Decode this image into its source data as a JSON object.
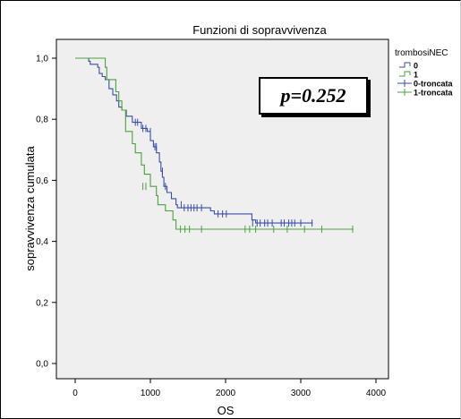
{
  "chart_data": {
    "type": "line",
    "title": "Funzioni di sopravvivenza",
    "xlabel": "OS",
    "ylabel": "sopravvivenza cumulata",
    "xlim": [
      -200,
      4200
    ],
    "ylim": [
      -0.05,
      1.05
    ],
    "x_ticks": [
      "0",
      "1000",
      "2000",
      "3000",
      "4000"
    ],
    "x_tick_values": [
      0,
      1000,
      2000,
      3000,
      4000
    ],
    "y_ticks": [
      "0,0",
      "0,2",
      "0,4",
      "0,6",
      "0,8",
      "1,0"
    ],
    "y_tick_values": [
      0,
      0.2,
      0.4,
      0.6,
      0.8,
      1.0
    ],
    "legend_title": "trombosiNEC",
    "legend_entries": [
      "0",
      "1",
      "0-troncata",
      "1-troncata"
    ],
    "legend_position": "right",
    "annotation": "p=0.252",
    "grid": false,
    "colors": {
      "group0": "#3a4ea6",
      "group1": "#49a33d",
      "plot_bg": "#efefef"
    },
    "series": [
      {
        "name": "0",
        "steps": [
          [
            0,
            1.0
          ],
          [
            180,
            0.99
          ],
          [
            200,
            0.98
          ],
          [
            300,
            0.97
          ],
          [
            320,
            0.95
          ],
          [
            360,
            0.94
          ],
          [
            400,
            0.93
          ],
          [
            450,
            0.9
          ],
          [
            500,
            0.88
          ],
          [
            550,
            0.86
          ],
          [
            580,
            0.84
          ],
          [
            620,
            0.83
          ],
          [
            680,
            0.81
          ],
          [
            760,
            0.79
          ],
          [
            880,
            0.77
          ],
          [
            960,
            0.76
          ],
          [
            1000,
            0.73
          ],
          [
            1040,
            0.71
          ],
          [
            1080,
            0.69
          ],
          [
            1120,
            0.66
          ],
          [
            1140,
            0.63
          ],
          [
            1160,
            0.61
          ],
          [
            1180,
            0.58
          ],
          [
            1220,
            0.56
          ],
          [
            1280,
            0.54
          ],
          [
            1340,
            0.52
          ],
          [
            1360,
            0.51
          ],
          [
            1450,
            0.51
          ],
          [
            1800,
            0.5
          ],
          [
            1850,
            0.49
          ],
          [
            2350,
            0.47
          ],
          [
            2400,
            0.46
          ],
          [
            3160,
            0.46
          ]
        ],
        "censored": [
          [
            800,
            0.79
          ],
          [
            830,
            0.79
          ],
          [
            900,
            0.77
          ],
          [
            940,
            0.77
          ],
          [
            1000,
            0.76
          ],
          [
            1060,
            0.71
          ],
          [
            1080,
            0.71
          ],
          [
            1160,
            0.63
          ],
          [
            1200,
            0.58
          ],
          [
            1410,
            0.52
          ],
          [
            1450,
            0.51
          ],
          [
            1500,
            0.51
          ],
          [
            1540,
            0.51
          ],
          [
            1580,
            0.51
          ],
          [
            1620,
            0.51
          ],
          [
            1680,
            0.51
          ],
          [
            1900,
            0.49
          ],
          [
            1960,
            0.49
          ],
          [
            2010,
            0.49
          ],
          [
            2360,
            0.46
          ],
          [
            2420,
            0.46
          ],
          [
            2460,
            0.46
          ],
          [
            2520,
            0.46
          ],
          [
            2560,
            0.46
          ],
          [
            2620,
            0.46
          ],
          [
            2740,
            0.46
          ],
          [
            2780,
            0.46
          ],
          [
            2840,
            0.46
          ],
          [
            2880,
            0.46
          ],
          [
            2920,
            0.46
          ],
          [
            3000,
            0.46
          ],
          [
            3150,
            0.46
          ]
        ]
      },
      {
        "name": "1",
        "steps": [
          [
            0,
            1.0
          ],
          [
            400,
            0.97
          ],
          [
            420,
            0.93
          ],
          [
            500,
            0.93
          ],
          [
            540,
            0.89
          ],
          [
            580,
            0.86
          ],
          [
            620,
            0.83
          ],
          [
            670,
            0.76
          ],
          [
            760,
            0.72
          ],
          [
            800,
            0.69
          ],
          [
            880,
            0.65
          ],
          [
            920,
            0.62
          ],
          [
            1000,
            0.58
          ],
          [
            1080,
            0.55
          ],
          [
            1100,
            0.52
          ],
          [
            1170,
            0.52
          ],
          [
            1200,
            0.5
          ],
          [
            1300,
            0.47
          ],
          [
            1340,
            0.44
          ],
          [
            3700,
            0.44
          ]
        ],
        "censored": [
          [
            900,
            0.58
          ],
          [
            940,
            0.58
          ],
          [
            1400,
            0.44
          ],
          [
            1460,
            0.44
          ],
          [
            1520,
            0.44
          ],
          [
            1680,
            0.44
          ],
          [
            2260,
            0.44
          ],
          [
            2320,
            0.44
          ],
          [
            2400,
            0.44
          ],
          [
            2640,
            0.44
          ],
          [
            2820,
            0.44
          ],
          [
            3050,
            0.44
          ],
          [
            3280,
            0.44
          ],
          [
            3690,
            0.44
          ]
        ]
      }
    ]
  }
}
